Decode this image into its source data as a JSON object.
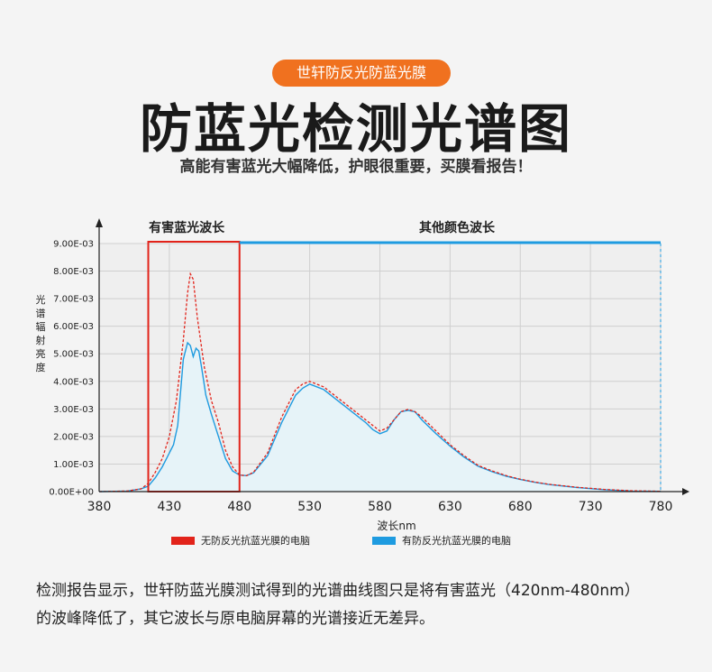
{
  "badge": "世轩防反光防蓝光膜",
  "title": "防蓝光检测光谱图",
  "subtitle": "高能有害蓝光大幅降低，护眼很重要，买膜看报告！",
  "region_labels": {
    "harmful": "有害蓝光波长",
    "other": "其他颜色波长"
  },
  "colors": {
    "badge": "#f0711f",
    "harmful_box": "#e2231a",
    "series_without": "#e2231a",
    "series_with": "#1e9be0",
    "top_band": "#1e9be0"
  },
  "description": [
    "检测报告显示，世轩防蓝光膜测试得到的光谱曲线图只是将有害蓝光（420nm-480nm）",
    "的波峰降低了，其它波长与原电脑屏幕的光谱接近无差异。"
  ],
  "chart_data": {
    "type": "line",
    "title": "",
    "xlabel": "波长nm",
    "ylabel": "光谱辐射亮度",
    "xlim": [
      380,
      780
    ],
    "ylim": [
      0,
      0.009
    ],
    "x_ticks": [
      "380",
      "430",
      "480",
      "530",
      "580",
      "630",
      "680",
      "730",
      "780"
    ],
    "y_ticks": [
      "0.00E+00",
      "1.00E-03",
      "2.00E-03",
      "3.00E-03",
      "4.00E-03",
      "5.00E-03",
      "6.00E-03",
      "7.00E-03",
      "8.00E-03",
      "9.00E-03"
    ],
    "grid": true,
    "legend_position": "bottom",
    "highlight_range": [
      415,
      480
    ],
    "series": [
      {
        "name": "无防反光抗蓝光膜的电脑",
        "style": "dashed",
        "x": [
          380,
          400,
          410,
          415,
          420,
          425,
          430,
          435,
          440,
          443,
          445,
          447,
          450,
          455,
          460,
          465,
          470,
          475,
          480,
          485,
          490,
          500,
          510,
          520,
          525,
          530,
          540,
          550,
          560,
          570,
          575,
          580,
          585,
          590,
          595,
          600,
          605,
          610,
          620,
          630,
          640,
          650,
          660,
          670,
          680,
          690,
          700,
          720,
          740,
          760,
          780
        ],
        "y": [
          0,
          2e-05,
          0.0001,
          0.0003,
          0.0007,
          0.0012,
          0.002,
          0.0033,
          0.0055,
          0.0072,
          0.0079,
          0.0077,
          0.0063,
          0.0045,
          0.0033,
          0.0025,
          0.0015,
          0.0009,
          0.0006,
          0.00058,
          0.0007,
          0.0014,
          0.0027,
          0.0037,
          0.0039,
          0.004,
          0.0038,
          0.0034,
          0.003,
          0.0026,
          0.0024,
          0.0022,
          0.0023,
          0.0026,
          0.0029,
          0.00298,
          0.0029,
          0.0027,
          0.0022,
          0.0017,
          0.0013,
          0.00095,
          0.00075,
          0.00058,
          0.00045,
          0.00035,
          0.00027,
          0.00016,
          8e-05,
          3e-05,
          1e-05
        ]
      },
      {
        "name": "有防反光抗蓝光膜的电脑",
        "style": "solid",
        "x": [
          380,
          400,
          410,
          415,
          420,
          425,
          430,
          433,
          436,
          438,
          440,
          443,
          445,
          447,
          449,
          451,
          453,
          456,
          460,
          465,
          470,
          475,
          480,
          485,
          490,
          500,
          510,
          520,
          525,
          530,
          540,
          550,
          560,
          570,
          575,
          580,
          585,
          590,
          595,
          600,
          605,
          610,
          620,
          630,
          640,
          650,
          660,
          670,
          680,
          690,
          700,
          720,
          740,
          760,
          780
        ],
        "y": [
          0,
          2e-05,
          0.0001,
          0.0002,
          0.0005,
          0.0009,
          0.0014,
          0.0017,
          0.0024,
          0.0036,
          0.0048,
          0.0054,
          0.0053,
          0.0049,
          0.0052,
          0.0051,
          0.0045,
          0.0035,
          0.0028,
          0.002,
          0.0012,
          0.00075,
          0.0006,
          0.00058,
          0.00068,
          0.0013,
          0.0025,
          0.0035,
          0.00375,
          0.0039,
          0.0037,
          0.0033,
          0.0029,
          0.0025,
          0.00225,
          0.0021,
          0.0022,
          0.0026,
          0.0029,
          0.00295,
          0.0029,
          0.0026,
          0.0021,
          0.00165,
          0.00125,
          0.00092,
          0.00072,
          0.00056,
          0.00044,
          0.00034,
          0.00026,
          0.00015,
          7e-05,
          2e-05,
          1e-05
        ]
      }
    ]
  }
}
